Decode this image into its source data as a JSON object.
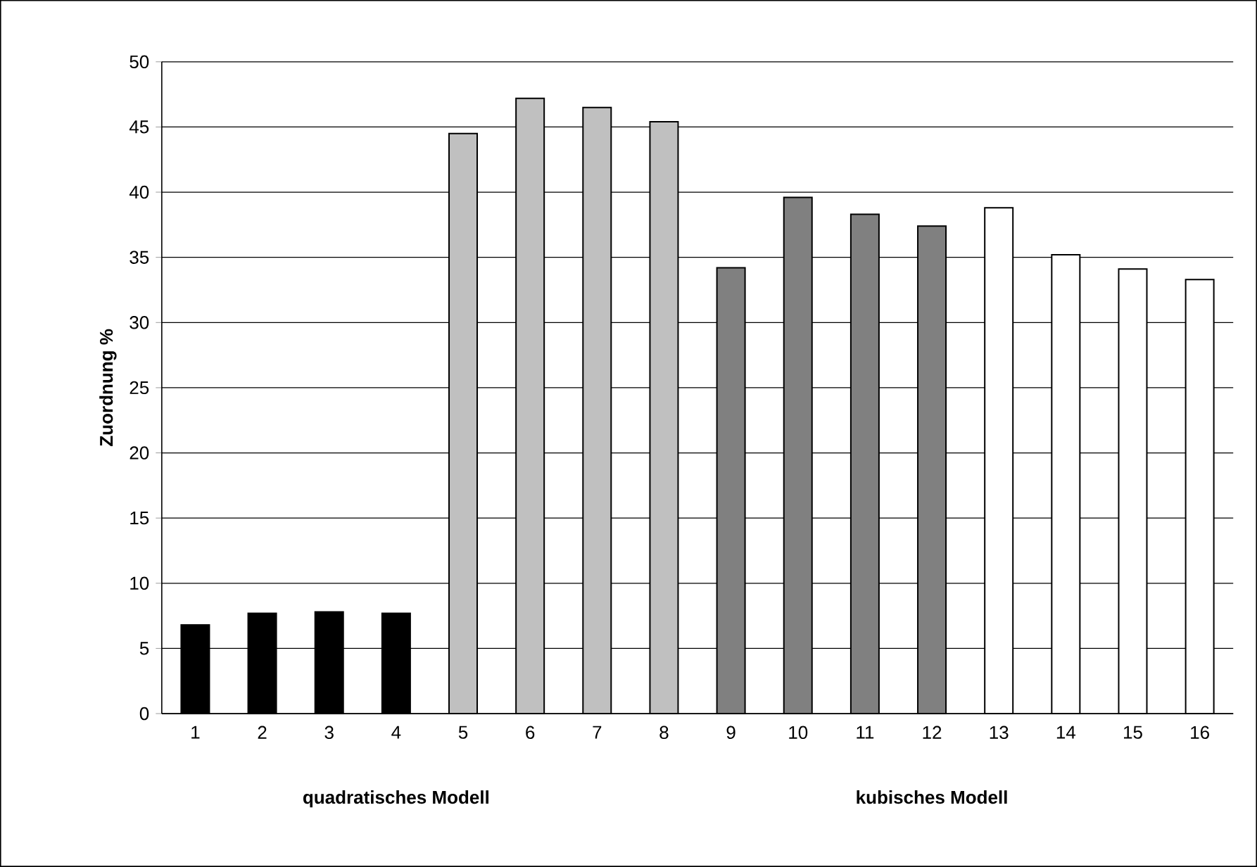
{
  "chart_data": {
    "type": "bar",
    "ylabel": "Zuordnung %",
    "categories": [
      "1",
      "2",
      "3",
      "4",
      "5",
      "6",
      "7",
      "8",
      "9",
      "10",
      "11",
      "12",
      "13",
      "14",
      "15",
      "16"
    ],
    "values": [
      6.8,
      7.7,
      7.8,
      7.7,
      44.5,
      47.2,
      46.5,
      45.4,
      34.2,
      39.6,
      38.3,
      37.4,
      38.8,
      35.2,
      34.1,
      33.3
    ],
    "colors": [
      "#000000",
      "#000000",
      "#000000",
      "#000000",
      "#c0c0c0",
      "#c0c0c0",
      "#c0c0c0",
      "#c0c0c0",
      "#808080",
      "#808080",
      "#808080",
      "#808080",
      "#ffffff",
      "#ffffff",
      "#ffffff",
      "#ffffff"
    ],
    "ylim": [
      0,
      50
    ],
    "yticks": [
      0,
      5,
      10,
      15,
      20,
      25,
      30,
      35,
      40,
      45,
      50
    ],
    "grid": "y",
    "annotations": [
      "quadratisches Modell",
      "kubisches Modell"
    ]
  }
}
